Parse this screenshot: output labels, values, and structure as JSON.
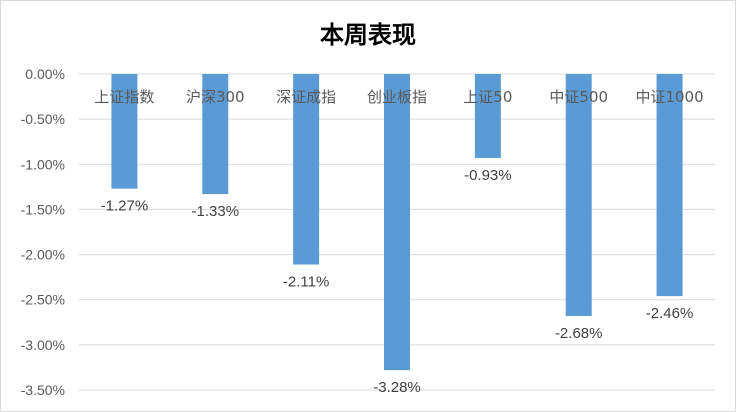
{
  "chart_data": {
    "type": "bar",
    "title": "本周表现",
    "categories": [
      "上证指数",
      "沪深300",
      "深证成指",
      "创业板指",
      "上证50",
      "中证500",
      "中证1000"
    ],
    "values": [
      -1.27,
      -1.33,
      -2.11,
      -3.28,
      -0.93,
      -2.68,
      -2.46
    ],
    "value_labels": [
      "-1.27%",
      "-1.33%",
      "-2.11%",
      "-3.28%",
      "-0.93%",
      "-2.68%",
      "-2.46%"
    ],
    "yticks": [
      0,
      -0.5,
      -1.0,
      -1.5,
      -2.0,
      -2.5,
      -3.0,
      -3.5
    ],
    "ytick_labels": [
      "0.00%",
      "-0.50%",
      "-1.00%",
      "-1.50%",
      "-2.00%",
      "-2.50%",
      "-3.00%",
      "-3.50%"
    ],
    "ylim": [
      -3.5,
      0
    ],
    "xlabel": "",
    "ylabel": "",
    "grid": true,
    "legend": "none",
    "colors": {
      "bar": "#5b9bd5",
      "grid": "#d9d9d9",
      "text": "#595959"
    }
  }
}
